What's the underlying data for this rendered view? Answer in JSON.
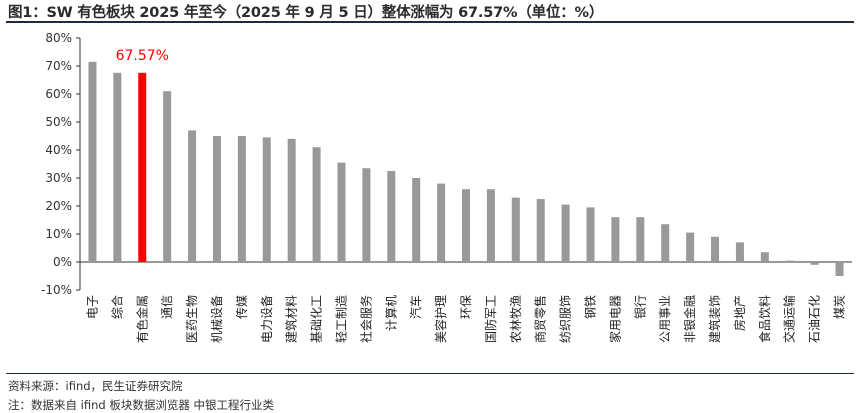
{
  "header": {
    "title": "图1：SW 有色板块 2025 年至今（2025 年 9 月 5 日）整体涨幅为 67.57%（单位：%）"
  },
  "footer": {
    "source": "资料来源：ifind，民生证券研究院",
    "note": "注：数据来自 ifind 板块数据浏览器 中银工程行业类"
  },
  "colors": {
    "default_bar": "#999999",
    "highlight_bar": "#ff0000",
    "highlight_label": "#ff0000"
  },
  "chart_data": {
    "type": "bar",
    "categories": [
      "电子",
      "综合",
      "有色金属",
      "通信",
      "医药生物",
      "机械设备",
      "传媒",
      "电力设备",
      "建筑材料",
      "基础化工",
      "轻工制造",
      "社会服务",
      "计算机",
      "汽车",
      "美容护理",
      "环保",
      "国防军工",
      "农林牧渔",
      "商贸零售",
      "纺织服饰",
      "钢铁",
      "家用电器",
      "银行",
      "公用事业",
      "非银金融",
      "建筑装饰",
      "房地产",
      "食品饮料",
      "交通运输",
      "石油石化",
      "煤炭"
    ],
    "values": [
      71.5,
      67.57,
      67.57,
      61,
      47,
      45,
      45,
      44.5,
      44,
      41,
      35.5,
      33.5,
      32.5,
      30,
      28,
      26,
      26,
      23,
      22.5,
      20.5,
      19.5,
      16,
      16,
      13.5,
      10.5,
      9,
      7,
      3.5,
      0.5,
      -1,
      -5
    ],
    "highlight_index": 2,
    "data_labels": [
      {
        "index": 2,
        "text": "67.57%"
      }
    ],
    "yticks": [
      "80%",
      "70%",
      "60%",
      "50%",
      "40%",
      "30%",
      "20%",
      "10%",
      "0%",
      "-10%"
    ],
    "ylim": [
      -10,
      80
    ],
    "grid": false,
    "legend": "none"
  }
}
